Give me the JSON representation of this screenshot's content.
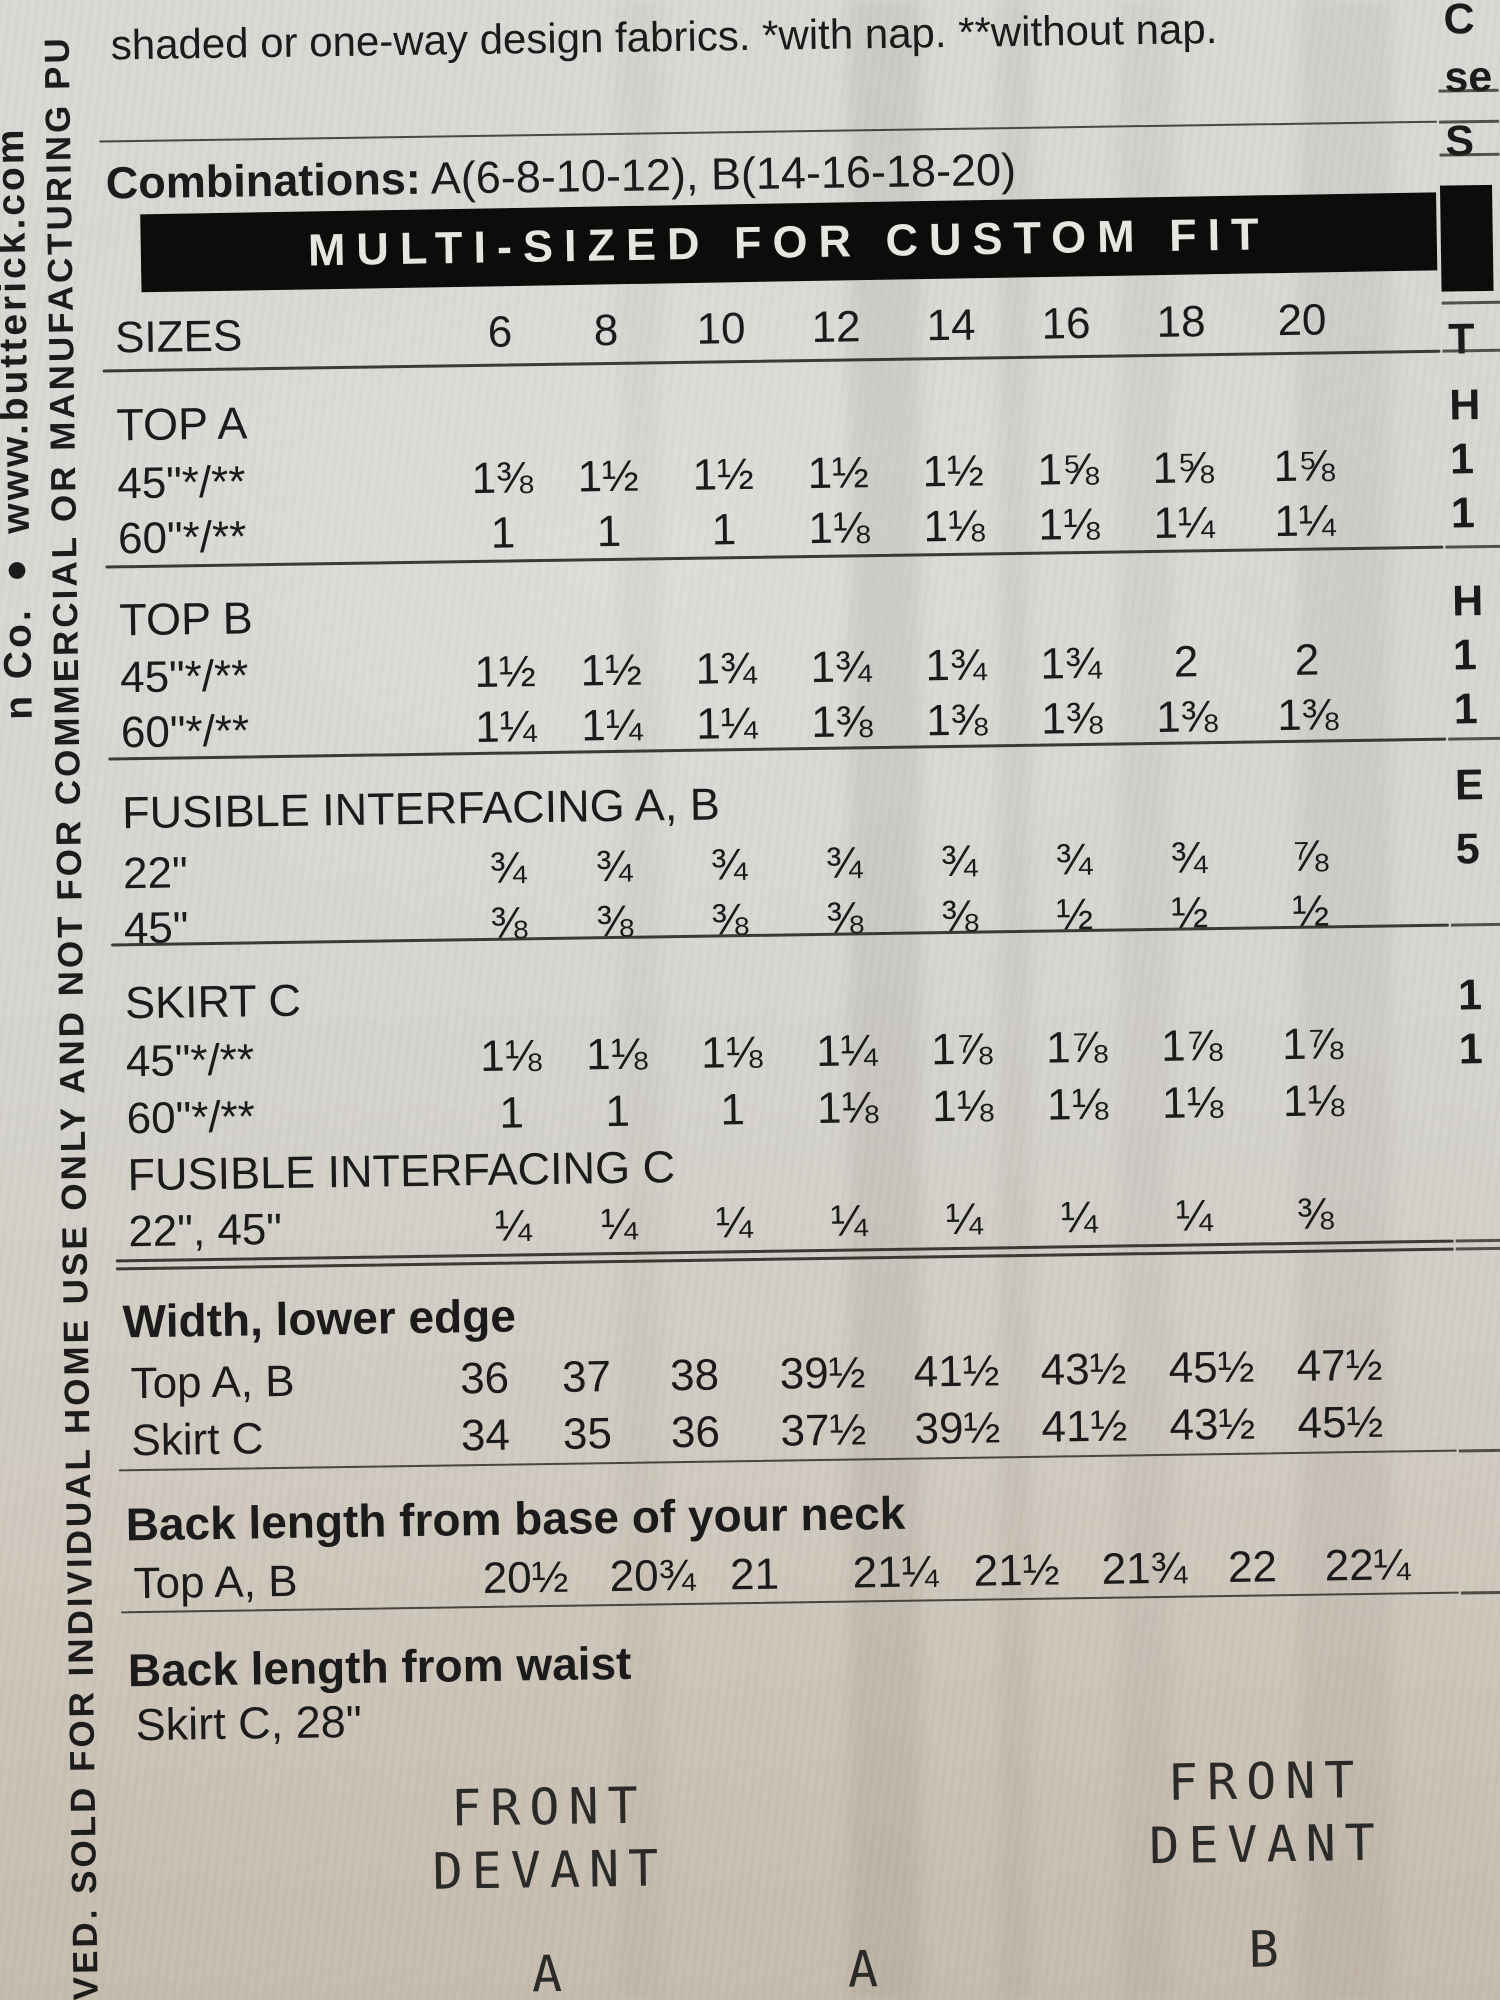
{
  "page": {
    "top_note": "shaded or one-way design fabrics. *with nap. **without nap.",
    "combinations": {
      "label": "Combinations:",
      "value": "A(6-8-10-12), B(14-16-18-20)"
    },
    "banner": "MULTI-SIZED FOR CUSTOM FIT"
  },
  "margins": {
    "left_outer": "n Co. ● www.butterick.com",
    "left_inner": "RVED.  SOLD FOR INDIVIDUAL HOME USE ONLY AND NOT FOR COMMERCIAL OR MANUFACTURING PU",
    "right_fragments": [
      "C",
      "se",
      "S",
      "T",
      "H",
      "1",
      "1",
      "H",
      "1",
      "1",
      "E",
      "5",
      "1",
      "1"
    ]
  },
  "table": {
    "sizes_label": "SIZES",
    "sizes": [
      "6",
      "8",
      "10",
      "12",
      "14",
      "16",
      "18",
      "20"
    ],
    "sections": [
      {
        "heading": "TOP A",
        "rows": [
          {
            "label": "45\"*/**",
            "values": [
              "1⅜",
              "1½",
              "1½",
              "1½",
              "1½",
              "1⅝",
              "1⅝",
              "1⅝"
            ]
          },
          {
            "label": "60\"*/**",
            "values": [
              "1",
              "1",
              "1",
              "1⅛",
              "1⅛",
              "1⅛",
              "1¼",
              "1¼"
            ]
          }
        ]
      },
      {
        "heading": "TOP B",
        "rows": [
          {
            "label": "45\"*/**",
            "values": [
              "1½",
              "1½",
              "1¾",
              "1¾",
              "1¾",
              "1¾",
              "2",
              "2"
            ]
          },
          {
            "label": "60\"*/**",
            "values": [
              "1¼",
              "1¼",
              "1¼",
              "1⅜",
              "1⅜",
              "1⅜",
              "1⅜",
              "1⅜"
            ]
          }
        ]
      },
      {
        "heading": "FUSIBLE INTERFACING A, B",
        "rows": [
          {
            "label": "22\"",
            "values": [
              "¾",
              "¾",
              "¾",
              "¾",
              "¾",
              "¾",
              "¾",
              "⅞"
            ]
          },
          {
            "label": "45\"",
            "values": [
              "⅜",
              "⅜",
              "⅜",
              "⅜",
              "⅜",
              "½",
              "½",
              "½"
            ]
          }
        ]
      },
      {
        "heading": "SKIRT C",
        "rows": [
          {
            "label": "45\"*/**",
            "values": [
              "1⅛",
              "1⅛",
              "1⅛",
              "1¼",
              "1⅞",
              "1⅞",
              "1⅞",
              "1⅞"
            ]
          },
          {
            "label": "60\"*/**",
            "values": [
              "1",
              "1",
              "1",
              "1⅛",
              "1⅛",
              "1⅛",
              "1⅛",
              "1⅛"
            ]
          }
        ]
      },
      {
        "heading": "FUSIBLE INTERFACING C",
        "rows": [
          {
            "label": "22\", 45\"",
            "values": [
              "¼",
              "¼",
              "¼",
              "¼",
              "¼",
              "¼",
              "¼",
              "⅜"
            ]
          }
        ]
      }
    ],
    "measurements": [
      {
        "heading": "Width, lower edge",
        "rows": [
          {
            "label": "Top A, B",
            "values": [
              "36",
              "37",
              "38",
              "39½",
              "41½",
              "43½",
              "45½",
              "47½"
            ]
          },
          {
            "label": "Skirt C",
            "values": [
              "34",
              "35",
              "36",
              "37½",
              "39½",
              "41½",
              "43½",
              "45½"
            ]
          }
        ]
      },
      {
        "heading": "Back length from base of your neck",
        "rows": [
          {
            "label": "Top A, B",
            "values": [
              "20½",
              "20¾",
              "21",
              "21¼",
              "21½",
              "21¾",
              "22",
              "22¼"
            ]
          }
        ]
      },
      {
        "heading": "Back length from waist",
        "rows": [
          {
            "label": "Skirt C, 28\"",
            "values": []
          }
        ]
      }
    ]
  },
  "footer_labels": {
    "front": "FRONT",
    "devant": "DEVANT",
    "piece_a": "A",
    "piece_a2": "A",
    "piece_b": "B"
  }
}
